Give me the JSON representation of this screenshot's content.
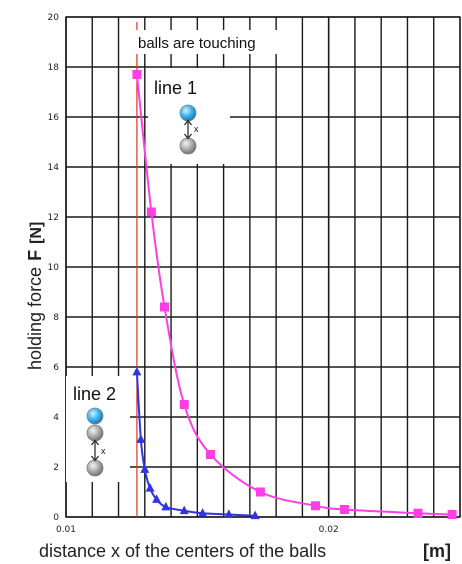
{
  "chart_data": {
    "type": "line",
    "xlim": [
      0.01,
      0.025
    ],
    "ylim": [
      0,
      20
    ],
    "xticks": [
      0.01,
      0.02
    ],
    "xtick_labels": [
      "0.01",
      "0.02"
    ],
    "yticks": [
      0,
      2,
      4,
      6,
      8,
      10,
      12,
      14,
      16,
      18,
      20
    ],
    "ytick_labels": [
      "0",
      "2",
      "4",
      "6",
      "8",
      "10",
      "12",
      "14",
      "16",
      "18",
      "20"
    ],
    "xlabel": "distance x of the centers of the balls",
    "xlabel_unit": "[m]",
    "ylabel": "holding force",
    "ylabel_symbol": "F",
    "ylabel_unit": "[N]",
    "grid": true,
    "colors": {
      "series_1": "#ff3ee6",
      "series_2": "#2f35e0",
      "touch_line": "#d9342b",
      "grid": "#1a1a1a"
    },
    "reference_line": {
      "x": 0.0127,
      "label": "balls are touching"
    },
    "series": [
      {
        "name": "line 1",
        "marker": "square",
        "x": [
          0.0127,
          0.01325,
          0.01375,
          0.0145,
          0.0155,
          0.0174,
          0.0195,
          0.0206,
          0.0234,
          0.0247
        ],
        "y": [
          17.7,
          12.2,
          8.4,
          4.5,
          2.5,
          1.0,
          0.45,
          0.3,
          0.15,
          0.1
        ]
      },
      {
        "name": "line 2",
        "marker": "triangle",
        "x": [
          0.0127,
          0.01285,
          0.013,
          0.0132,
          0.01345,
          0.0138,
          0.0145,
          0.0152,
          0.0162,
          0.0172
        ],
        "y": [
          5.8,
          3.1,
          1.9,
          1.15,
          0.7,
          0.4,
          0.25,
          0.15,
          0.1,
          0.05
        ]
      }
    ]
  },
  "icons": [
    "ball-pair-icon-line-1",
    "ball-pair-icon-line-2"
  ],
  "icon_labels": {
    "distance_label": "x"
  }
}
